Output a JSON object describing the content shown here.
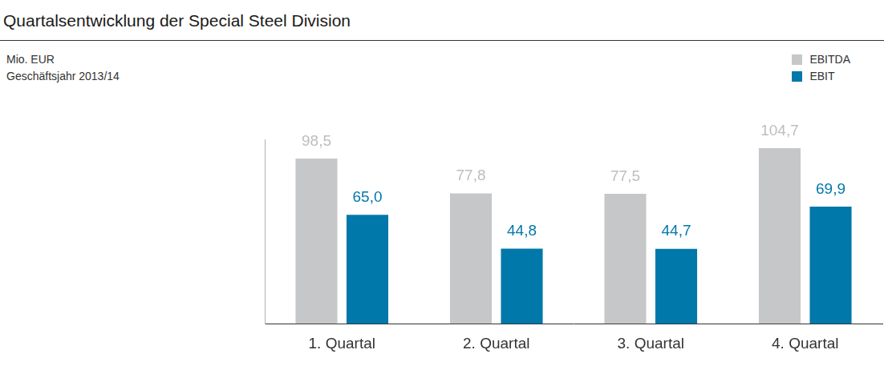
{
  "chart_data": {
    "type": "bar",
    "title": "Quartalsentwicklung der Special Steel Division",
    "subtitle": [
      "Mio. EUR",
      "Geschäftsjahr 2013/14"
    ],
    "categories": [
      "1. Quartal",
      "2. Quartal",
      "3. Quartal",
      "4. Quartal"
    ],
    "series": [
      {
        "name": "EBITDA",
        "color": "#c6c7c8",
        "values": [
          98.5,
          77.8,
          77.5,
          104.7
        ],
        "value_labels": [
          "98,5",
          "77,8",
          "77,5",
          "104,7"
        ]
      },
      {
        "name": "EBIT",
        "color": "#0078a9",
        "values": [
          65.0,
          44.8,
          44.7,
          69.9
        ],
        "value_labels": [
          "65,0",
          "44,8",
          "44,7",
          "69,9"
        ]
      }
    ],
    "ylim": [
      0,
      110
    ],
    "grid": false,
    "legend": "top-right",
    "data_labels": true,
    "tick_labels": "x"
  }
}
